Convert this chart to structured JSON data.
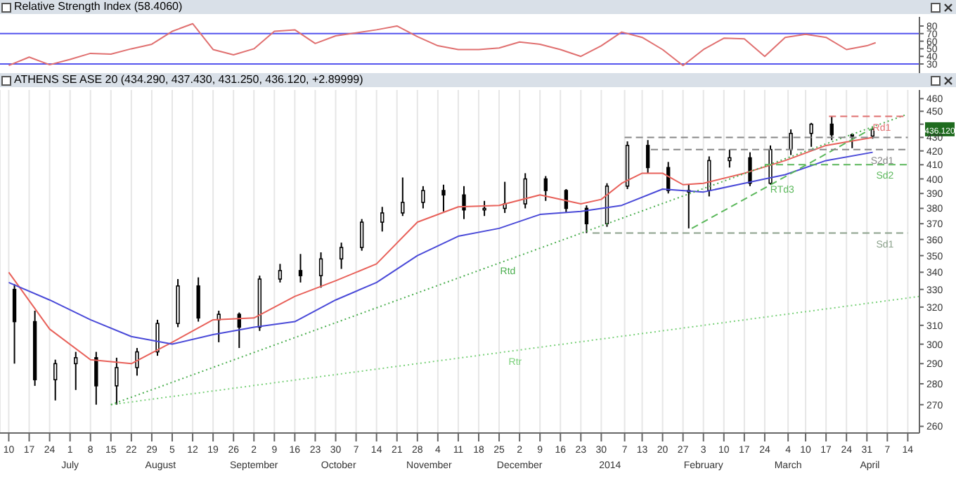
{
  "chart_data": [
    {
      "type": "line",
      "title": "Relative Strength Index (58.4060)",
      "xlim": [
        "2013-06-07",
        "2014-04-18"
      ],
      "ylim": [
        18,
        92
      ],
      "yticks": [
        30,
        40,
        50,
        60,
        70,
        80
      ],
      "tick_labels": "y",
      "series": [
        {
          "color": "#e07070",
          "x": [
            "2013-06-10",
            "2013-06-17",
            "2013-06-24",
            "2013-07-01",
            "2013-07-08",
            "2013-07-15",
            "2013-07-22",
            "2013-07-29",
            "2013-08-05",
            "2013-08-12",
            "2013-08-19",
            "2013-08-26",
            "2013-09-02",
            "2013-09-09",
            "2013-09-16",
            "2013-09-23",
            "2013-09-30",
            "2013-10-07",
            "2013-10-14",
            "2013-10-21",
            "2013-10-28",
            "2013-11-04",
            "2013-11-11",
            "2013-11-18",
            "2013-11-25",
            "2013-12-02",
            "2013-12-09",
            "2013-12-16",
            "2013-12-23",
            "2013-12-30",
            "2014-01-06",
            "2014-01-13",
            "2014-01-20",
            "2014-01-27",
            "2014-02-03",
            "2014-02-10",
            "2014-02-17",
            "2014-02-24",
            "2014-03-03",
            "2014-03-10",
            "2014-03-17",
            "2014-03-24",
            "2014-03-31",
            "2014-04-03"
          ],
          "values": [
            28,
            39,
            29,
            36,
            44,
            43,
            50,
            56,
            73,
            83,
            49,
            42,
            50,
            73,
            75,
            57,
            67,
            71,
            75,
            80,
            66,
            54,
            49,
            49,
            51,
            59,
            56,
            49,
            40,
            54,
            72,
            65,
            49,
            28,
            49,
            64,
            63,
            40,
            65,
            69,
            65,
            49,
            54,
            58
          ]
        }
      ],
      "ref_lines": [
        {
          "axis": "y",
          "value": 70,
          "color": "#5555ee"
        },
        {
          "axis": "y",
          "value": 30,
          "color": "#5555ee"
        }
      ]
    },
    {
      "type": "candlestick",
      "title": "ATHENS SE ASE 20 (434.290, 437.430, 431.250, 436.120, +2.89999)",
      "log": "y",
      "grid": "x",
      "xlim": [
        "2013-06-07",
        "2014-04-18"
      ],
      "ylim": [
        257,
        467
      ],
      "yticks": [
        260,
        270,
        280,
        290,
        300,
        310,
        320,
        330,
        340,
        350,
        360,
        370,
        380,
        390,
        400,
        410,
        420,
        430,
        {
          "value": 440,
          "label": null
        },
        450,
        460
      ],
      "xticks": [
        {
          "value": "2013-06-10",
          "label": "10"
        },
        {
          "value": "2013-06-17",
          "label": "17"
        },
        {
          "value": "2013-06-24",
          "label": "24"
        },
        {
          "value": "2013-07-01",
          "label": "1"
        },
        {
          "value": "2013-07-08",
          "label": "8"
        },
        {
          "value": "2013-07-15",
          "label": "15"
        },
        {
          "value": "2013-07-22",
          "label": "22"
        },
        {
          "value": "2013-07-29",
          "label": "29"
        },
        {
          "value": "2013-08-05",
          "label": "5"
        },
        {
          "value": "2013-08-12",
          "label": "12"
        },
        {
          "value": "2013-08-19",
          "label": "19"
        },
        {
          "value": "2013-08-26",
          "label": "26"
        },
        {
          "value": "2013-09-02",
          "label": "2"
        },
        {
          "value": "2013-09-09",
          "label": "9"
        },
        {
          "value": "2013-09-16",
          "label": "16"
        },
        {
          "value": "2013-09-23",
          "label": "23"
        },
        {
          "value": "2013-09-30",
          "label": "30"
        },
        {
          "value": "2013-10-07",
          "label": "7"
        },
        {
          "value": "2013-10-14",
          "label": "14"
        },
        {
          "value": "2013-10-21",
          "label": "21"
        },
        {
          "value": "2013-10-28",
          "label": "28"
        },
        {
          "value": "2013-11-04",
          "label": "4"
        },
        {
          "value": "2013-11-11",
          "label": "11"
        },
        {
          "value": "2013-11-18",
          "label": "18"
        },
        {
          "value": "2013-11-25",
          "label": "25"
        },
        {
          "value": "2013-12-02",
          "label": "2"
        },
        {
          "value": "2013-12-09",
          "label": "9"
        },
        {
          "value": "2013-12-16",
          "label": "16"
        },
        {
          "value": "2013-12-23",
          "label": "23"
        },
        {
          "value": "2013-12-30",
          "label": "30"
        },
        {
          "value": "2014-01-07",
          "label": "7"
        },
        {
          "value": "2014-01-13",
          "label": "13"
        },
        {
          "value": "2014-01-20",
          "label": "20"
        },
        {
          "value": "2014-01-27",
          "label": "27"
        },
        {
          "value": "2014-02-03",
          "label": "3"
        },
        {
          "value": "2014-02-10",
          "label": "10"
        },
        {
          "value": "2014-02-17",
          "label": "17"
        },
        {
          "value": "2014-02-24",
          "label": "24"
        },
        {
          "value": "2014-03-04",
          "label": "4"
        },
        {
          "value": "2014-03-10",
          "label": "10"
        },
        {
          "value": "2014-03-17",
          "label": "17"
        },
        {
          "value": "2014-03-24",
          "label": "24"
        },
        {
          "value": "2014-03-31",
          "label": "31"
        },
        {
          "value": "2014-04-07",
          "label": "7"
        },
        {
          "value": "2014-04-14",
          "label": "14"
        }
      ],
      "x": [
        "2013-06-12",
        "2013-06-19",
        "2013-06-26",
        "2013-07-03",
        "2013-07-10",
        "2013-07-17",
        "2013-07-24",
        "2013-07-31",
        "2013-08-07",
        "2013-08-14",
        "2013-08-21",
        "2013-08-28",
        "2013-09-04",
        "2013-09-11",
        "2013-09-18",
        "2013-09-25",
        "2013-10-02",
        "2013-10-09",
        "2013-10-16",
        "2013-10-23",
        "2013-10-30",
        "2013-11-06",
        "2013-11-13",
        "2013-11-20",
        "2013-11-27",
        "2013-12-04",
        "2013-12-11",
        "2013-12-18",
        "2013-12-25",
        "2014-01-01",
        "2014-01-08",
        "2014-01-15",
        "2014-01-22",
        "2014-01-29",
        "2014-02-05",
        "2014-02-12",
        "2014-02-19",
        "2014-02-26",
        "2014-03-05",
        "2014-03-12",
        "2014-03-19",
        "2014-03-26",
        "2014-04-02"
      ],
      "ohlc": [
        [
          330,
          333,
          290,
          312
        ],
        [
          312,
          318,
          279,
          282
        ],
        [
          282,
          292,
          272,
          290
        ],
        [
          290,
          296,
          277,
          293
        ],
        [
          293,
          296,
          270,
          279
        ],
        [
          279,
          293,
          270,
          288
        ],
        [
          288,
          298,
          284,
          296
        ],
        [
          296,
          313,
          294,
          311
        ],
        [
          311,
          336,
          309,
          332
        ],
        [
          332,
          337,
          312,
          314
        ],
        [
          313,
          318,
          301,
          316
        ],
        [
          316,
          317,
          298,
          309
        ],
        [
          309,
          338,
          307,
          336
        ],
        [
          336,
          345,
          334,
          341
        ],
        [
          341,
          351,
          334,
          338
        ],
        [
          338,
          352,
          331,
          348
        ],
        [
          348,
          358,
          342,
          355
        ],
        [
          355,
          373,
          353,
          371
        ],
        [
          371,
          381,
          365,
          377
        ],
        [
          377,
          401,
          375,
          384
        ],
        [
          384,
          395,
          380,
          392
        ],
        [
          392,
          396,
          378,
          389
        ],
        [
          389,
          395,
          373,
          379
        ],
        [
          379,
          385,
          375,
          380
        ],
        [
          380,
          398,
          377,
          383
        ],
        [
          383,
          404,
          380,
          400
        ],
        [
          400,
          402,
          385,
          392
        ],
        [
          392,
          393,
          377,
          380
        ],
        [
          380,
          382,
          364,
          370
        ],
        [
          370,
          397,
          368,
          395
        ],
        [
          395,
          427,
          393,
          424
        ],
        [
          424,
          428,
          404,
          408
        ],
        [
          408,
          412,
          390,
          392
        ],
        [
          392,
          396,
          367,
          392
        ],
        [
          392,
          416,
          388,
          413
        ],
        [
          413,
          421,
          408,
          415
        ],
        [
          415,
          419,
          395,
          397
        ],
        [
          397,
          424,
          396,
          421
        ],
        [
          421,
          436,
          417,
          433
        ],
        [
          433,
          441,
          423,
          440
        ],
        [
          440,
          446,
          428,
          432
        ],
        [
          432,
          433,
          422,
          431
        ],
        [
          431,
          437.43,
          429,
          436.12
        ]
      ],
      "series": [
        {
          "type": "line",
          "color": "#e8615a",
          "x": [
            "2013-06-10",
            "2013-06-24",
            "2013-07-08",
            "2013-07-22",
            "2013-08-05",
            "2013-08-19",
            "2013-09-02",
            "2013-09-16",
            "2013-09-30",
            "2013-10-14",
            "2013-10-28",
            "2013-11-11",
            "2013-11-25",
            "2013-12-09",
            "2013-12-23",
            "2013-12-30",
            "2014-01-06",
            "2014-01-13",
            "2014-01-20",
            "2014-01-27",
            "2014-02-03",
            "2014-02-17",
            "2014-03-03",
            "2014-03-17",
            "2014-04-02"
          ],
          "values": [
            340,
            308,
            292,
            290,
            301,
            313,
            314,
            326,
            335,
            345,
            371,
            381,
            382,
            389,
            383,
            386,
            397,
            404,
            404,
            396,
            397,
            404,
            413,
            424,
            430
          ]
        },
        {
          "type": "line",
          "color": "#4a4ad8",
          "x": [
            "2013-06-10",
            "2013-06-24",
            "2013-07-08",
            "2013-07-22",
            "2013-08-05",
            "2013-08-19",
            "2013-09-02",
            "2013-09-16",
            "2013-09-30",
            "2013-10-14",
            "2013-10-28",
            "2013-11-11",
            "2013-11-25",
            "2013-12-09",
            "2013-12-23",
            "2014-01-06",
            "2014-01-20",
            "2014-02-03",
            "2014-02-17",
            "2014-03-03",
            "2014-03-17",
            "2014-04-02"
          ],
          "values": [
            334,
            324,
            313,
            304,
            300,
            305,
            309,
            312,
            324,
            334,
            350,
            362,
            367,
            376,
            378,
            382,
            393,
            391,
            397,
            403,
            413,
            419
          ]
        },
        {
          "type": "line",
          "name": "Rtr",
          "color": "#7bd17b",
          "line_style": "dotted",
          "x": [
            "2013-07-15",
            "2014-04-18"
          ],
          "values": [
            270,
            326
          ]
        },
        {
          "type": "line",
          "name": "Rtd",
          "color": "#4caf50",
          "line_style": "dotted",
          "x": [
            "2013-07-15",
            "2014-04-13"
          ],
          "values": [
            270,
            447
          ]
        },
        {
          "type": "line",
          "name": "RTd3",
          "color": "#5cb85c",
          "line_style": "dashed",
          "x": [
            "2014-01-30",
            "2014-04-02"
          ],
          "values": [
            367,
            437
          ]
        },
        {
          "type": "line",
          "name": "Rd1",
          "color": "#e07070",
          "line_style": "dashed",
          "x": [
            "2014-03-18",
            "2014-04-13"
          ],
          "values": [
            446,
            446
          ]
        },
        {
          "type": "line",
          "color": "#888888",
          "line_style": "dashed",
          "x": [
            "2014-01-07",
            "2014-04-14"
          ],
          "values": [
            430,
            430
          ]
        },
        {
          "type": "line",
          "name": "S2d1",
          "color": "#888888",
          "line_style": "dashed",
          "x": [
            "2014-01-16",
            "2014-04-14"
          ],
          "values": [
            421,
            421
          ]
        },
        {
          "type": "line",
          "name": "Sd2",
          "color": "#5cb85c",
          "line_style": "dashed",
          "x": [
            "2014-02-24",
            "2014-04-14"
          ],
          "values": [
            410,
            410
          ]
        },
        {
          "type": "line",
          "name": "Sd1",
          "color": "#8aa08a",
          "line_style": "dashed",
          "x": [
            "2013-12-27",
            "2014-04-14"
          ],
          "values": [
            364,
            364
          ]
        }
      ],
      "x2lim": [
        "2013-06-07",
        "2014-04-18"
      ],
      "x2ticks": [
        {
          "value": "2013-07-01",
          "label": "July"
        },
        {
          "value": "2013-08-01",
          "label": "August"
        },
        {
          "value": "2013-09-02",
          "label": "September"
        },
        {
          "value": "2013-10-01",
          "label": "October"
        },
        {
          "value": "2013-11-01",
          "label": "November"
        },
        {
          "value": "2013-12-02",
          "label": "December"
        },
        {
          "value": "2014-01-02",
          "label": "2014"
        },
        {
          "value": "2014-02-03",
          "label": "February"
        },
        {
          "value": "2014-03-04",
          "label": "March"
        },
        {
          "value": "2014-04-01",
          "label": "April"
        }
      ],
      "annotations": [
        "436.120"
      ]
    }
  ]
}
